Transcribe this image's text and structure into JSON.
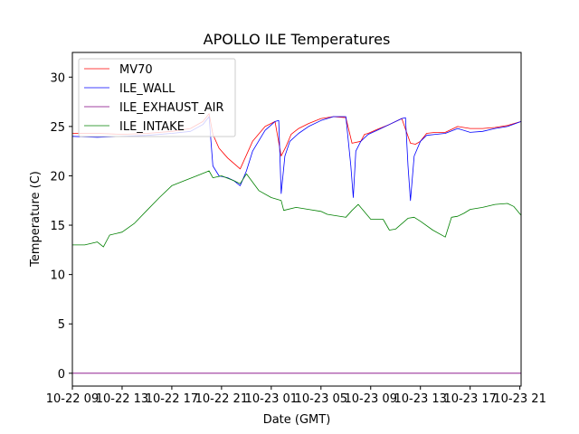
{
  "chart_data": {
    "type": "line",
    "title": "APOLLO ILE Temperatures",
    "xlabel": "Date (GMT)",
    "ylabel": "Temperature (C)",
    "x_ticks": [
      "10-22 09",
      "10-22 13",
      "10-22 17",
      "10-22 21",
      "10-23 01",
      "10-23 05",
      "10-23 09",
      "10-23 13",
      "10-23 17",
      "10-23 21"
    ],
    "xlim": [
      0,
      36.1
    ],
    "ylim": [
      -1.3,
      32.5
    ],
    "y_ticks": [
      0,
      5,
      10,
      15,
      20,
      25,
      30
    ],
    "grid": false,
    "legend_position": "top-left",
    "series": [
      {
        "name": "MV70",
        "color": "#ff0000",
        "x": [
          0,
          2,
          4,
          6,
          8,
          9.5,
          10.5,
          11,
          11.3,
          11.8,
          12.5,
          13.5,
          14.5,
          15.5,
          16.3,
          16.8,
          17.2,
          17.6,
          18.2,
          19,
          20,
          21,
          22,
          22.5,
          23.2,
          23.5,
          23.8,
          24.5,
          25.5,
          26.5,
          27.2,
          27.6,
          28,
          28.5,
          29.2,
          30,
          31,
          32,
          33,
          34,
          35,
          36.1
        ],
        "y": [
          24.3,
          24.3,
          24.2,
          24.3,
          24.5,
          24.8,
          25.5,
          26.3,
          24.2,
          22.8,
          21.8,
          20.7,
          23.5,
          25,
          25.5,
          22,
          23,
          24.2,
          24.8,
          25.3,
          25.8,
          26,
          25.9,
          23.3,
          23.5,
          24.2,
          24.3,
          24.7,
          25.2,
          25.8,
          23.3,
          23.2,
          23.5,
          24.3,
          24.4,
          24.4,
          25,
          24.8,
          24.8,
          24.9,
          25.1,
          25.5
        ]
      },
      {
        "name": "ILE_WALL",
        "color": "#0000ff",
        "x": [
          0,
          2,
          4,
          6,
          8,
          9.5,
          10.5,
          11,
          11.3,
          11.8,
          12.5,
          13,
          13.5,
          14,
          14.5,
          15.5,
          16.3,
          16.6,
          16.8,
          17.1,
          17.5,
          18.2,
          19,
          20,
          21,
          22,
          22.4,
          22.6,
          22.8,
          23.2,
          23.8,
          24.5,
          25.5,
          26.5,
          26.8,
          27,
          27.2,
          27.5,
          28,
          28.5,
          29.2,
          30,
          31,
          32,
          33,
          34,
          35,
          36.1
        ],
        "y": [
          24,
          23.9,
          24,
          24.1,
          24.3,
          24.5,
          25.2,
          26,
          21,
          20,
          19.8,
          19.5,
          19,
          20.5,
          22.5,
          24.6,
          25.5,
          25.6,
          18.2,
          22,
          23.5,
          24.3,
          25,
          25.6,
          26,
          26,
          21,
          17.8,
          22.5,
          23.5,
          24.2,
          24.6,
          25.2,
          25.8,
          25.9,
          21,
          17.5,
          22,
          23.5,
          24.1,
          24.2,
          24.3,
          24.8,
          24.4,
          24.5,
          24.8,
          25,
          25.5
        ]
      },
      {
        "name": "ILE_EXHAUST_AIR",
        "color": "#800080",
        "x": [
          0,
          36.1
        ],
        "y": [
          0,
          0
        ]
      },
      {
        "name": "ILE_INTAKE",
        "color": "#008000",
        "x": [
          0,
          1,
          2,
          2.5,
          3,
          4,
          5,
          6,
          7,
          8,
          9,
          10,
          11,
          11.3,
          12,
          13,
          13.5,
          14,
          15,
          16,
          16.8,
          17,
          18,
          19,
          20,
          20.5,
          21,
          22,
          22.5,
          23,
          24,
          25,
          25.5,
          26,
          27,
          27.5,
          28,
          29,
          30,
          30.5,
          31,
          31.5,
          32,
          33,
          34,
          35,
          35.5,
          36.1
        ],
        "y": [
          13,
          13,
          13.3,
          12.8,
          14,
          14.3,
          15.2,
          16.5,
          17.8,
          19,
          19.5,
          20,
          20.5,
          19.8,
          20,
          19.5,
          19.2,
          20.2,
          18.5,
          17.8,
          17.5,
          16.5,
          16.8,
          16.6,
          16.4,
          16.1,
          16,
          15.8,
          16.5,
          17.1,
          15.6,
          15.6,
          14.5,
          14.6,
          15.7,
          15.8,
          15.4,
          14.5,
          13.8,
          15.8,
          15.9,
          16.2,
          16.6,
          16.8,
          17.1,
          17.2,
          16.9,
          16
        ]
      }
    ]
  }
}
